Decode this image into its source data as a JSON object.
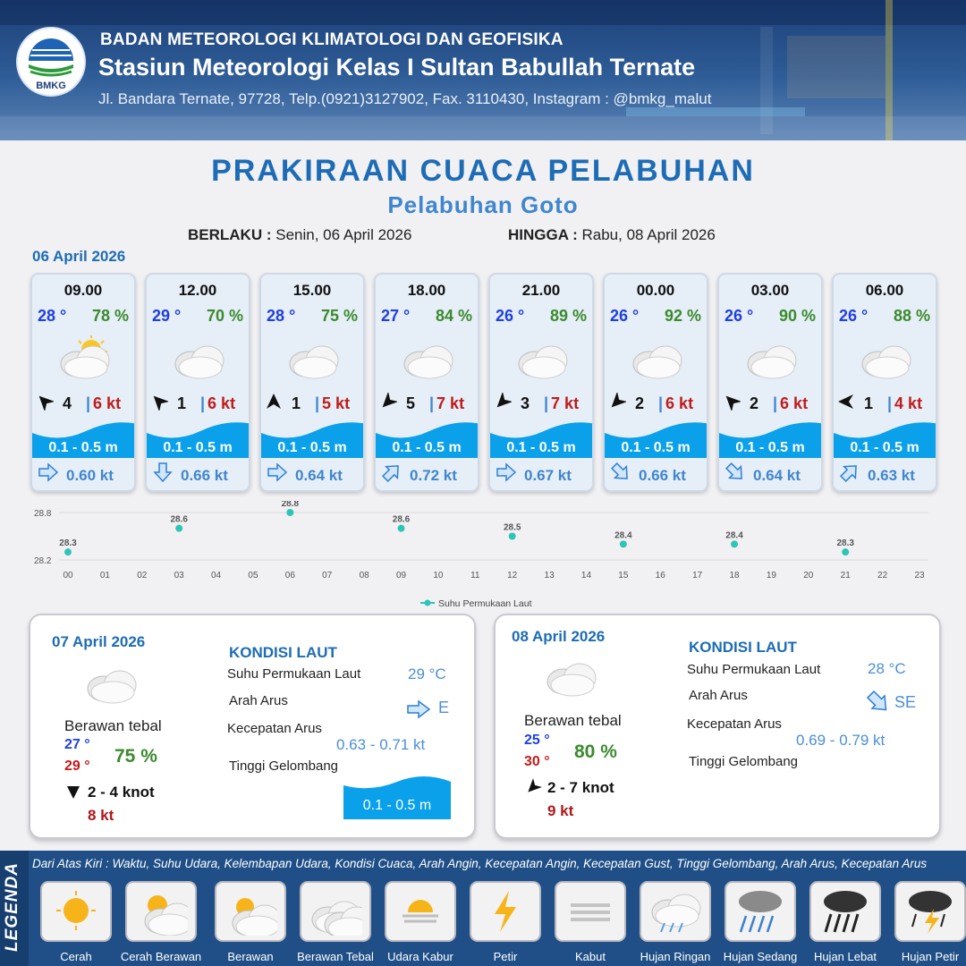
{
  "header": {
    "logo_text": "BMKG",
    "agency": "BADAN METEOROLOGI KLIMATOLOGI DAN GEOFISIKA",
    "station": "Stasiun Meteorologi Kelas I Sultan Babullah Ternate",
    "address": "Jl. Bandara Ternate, 97728, Telp.(0921)3127902, Fax. 3110430, Instagram : @bmkg_malut"
  },
  "title": "PRAKIRAAN CUACA PELABUHAN",
  "subtitle": "Pelabuhan Goto",
  "validity": {
    "from_label": "BERLAKU :",
    "from_value": "Senin, 06 April 2026",
    "to_label": "HINGGA :",
    "to_value": "Rabu, 08 April 2026"
  },
  "day1": {
    "date": "06 April 2026",
    "cards": [
      {
        "time": "09.00",
        "temp": "28 °",
        "hum": "78 %",
        "icon": "sun-cloud-icon",
        "wind": "4",
        "gust": "6 kt",
        "wave": "0.1 - 0.5 m",
        "current": "0.60 kt",
        "wdir": 315,
        "cdir": 90
      },
      {
        "time": "12.00",
        "temp": "29 °",
        "hum": "70 %",
        "icon": "cloud-icon",
        "wind": "1",
        "gust": "6 kt",
        "wave": "0.1 - 0.5 m",
        "current": "0.66 kt",
        "wdir": 315,
        "cdir": 180
      },
      {
        "time": "15.00",
        "temp": "28 °",
        "hum": "75 %",
        "icon": "cloud-icon",
        "wind": "1",
        "gust": "5 kt",
        "wave": "0.1 - 0.5 m",
        "current": "0.64 kt",
        "wdir": 0,
        "cdir": 90
      },
      {
        "time": "18.00",
        "temp": "27 °",
        "hum": "84 %",
        "icon": "cloud-icon",
        "wind": "5",
        "gust": "7 kt",
        "wave": "0.1 - 0.5 m",
        "current": "0.72 kt",
        "wdir": 225,
        "cdir": 45
      },
      {
        "time": "21.00",
        "temp": "26 °",
        "hum": "89 %",
        "icon": "cloud-icon",
        "wind": "3",
        "gust": "7 kt",
        "wave": "0.1 - 0.5 m",
        "current": "0.67 kt",
        "wdir": 225,
        "cdir": 90
      },
      {
        "time": "00.00",
        "temp": "26 °",
        "hum": "92 %",
        "icon": "cloud-icon",
        "wind": "2",
        "gust": "6 kt",
        "wave": "0.1 - 0.5 m",
        "current": "0.66 kt",
        "wdir": 225,
        "cdir": 135
      },
      {
        "time": "03.00",
        "temp": "26 °",
        "hum": "90 %",
        "icon": "cloud-icon",
        "wind": "2",
        "gust": "6 kt",
        "wave": "0.1 - 0.5 m",
        "current": "0.64 kt",
        "wdir": 315,
        "cdir": 135
      },
      {
        "time": "06.00",
        "temp": "26 °",
        "hum": "88 %",
        "icon": "cloud-icon",
        "wind": "1",
        "gust": "4 kt",
        "wave": "0.1 - 0.5 m",
        "current": "0.63 kt",
        "wdir": 270,
        "cdir": 45
      }
    ]
  },
  "chart_data": {
    "type": "scatter",
    "x": [
      "00",
      "03",
      "06",
      "09",
      "12",
      "15",
      "18",
      "21"
    ],
    "series": [
      {
        "name": "Suhu Permukaan Laut",
        "values": [
          28.3,
          28.6,
          28.8,
          28.6,
          28.5,
          28.4,
          28.4,
          28.3
        ]
      }
    ],
    "x_ticks": [
      "00",
      "01",
      "02",
      "03",
      "04",
      "05",
      "06",
      "07",
      "08",
      "09",
      "10",
      "11",
      "12",
      "13",
      "14",
      "15",
      "16",
      "17",
      "18",
      "19",
      "20",
      "21",
      "22",
      "23"
    ],
    "y_ticks": [
      "28.8",
      "28.2"
    ],
    "ylim": [
      28.2,
      28.8
    ],
    "grid": true,
    "legend": "bottom",
    "color": "#2ec4b6"
  },
  "day2": {
    "date": "07 April 2026",
    "condition": "Berawan tebal",
    "temp_min": "27 °",
    "temp_max": "29 °",
    "humidity": "75 %",
    "wind": "2  - 4 knot",
    "gust": "8 kt",
    "sea_title": "KONDISI LAUT",
    "sst_label": "Suhu Permukaan Laut",
    "sst_value": "29 °C",
    "cur_dir_label": "Arah Arus",
    "cur_dir_value": "E",
    "cur_spd_label": "Kecepatan Arus",
    "cur_spd_value": "0.63  - 0.71 kt",
    "wave_label": "Tinggi Gelombang",
    "wave_value": "0.1 - 0.5 m"
  },
  "day3": {
    "date": "08 April 2026",
    "condition": "Berawan tebal",
    "temp_min": "25 °",
    "temp_max": "30 °",
    "humidity": "80 %",
    "wind": "2  - 7 knot",
    "gust": "9 kt",
    "sea_title": "KONDISI LAUT",
    "sst_label": "Suhu Permukaan Laut",
    "sst_value": "28 °C",
    "cur_dir_label": "Arah Arus",
    "cur_dir_value": "SE",
    "cur_spd_label": "Kecepatan Arus",
    "cur_spd_value": "0.69  - 0.79 kt",
    "wave_label": "Tinggi Gelombang"
  },
  "legend": {
    "side_label": "LEGENDA",
    "description": "Dari Atas Kiri : Waktu, Suhu Udara, Kelembapan Udara, Kondisi Cuaca, Arah Angin, Kecepatan Angin, Kecepatan Gust, Tinggi Gelombang, Arah Arus, Kecepatan Arus",
    "items": [
      {
        "label": "Cerah",
        "icon": "sun-icon"
      },
      {
        "label": "Cerah Berawan",
        "icon": "sun-cloud-icon"
      },
      {
        "label": "Berawan",
        "icon": "cloudy-icon"
      },
      {
        "label": "Berawan Tebal",
        "icon": "overcast-icon"
      },
      {
        "label": "Udara Kabur",
        "icon": "haze-icon"
      },
      {
        "label": "Petir",
        "icon": "lightning-icon"
      },
      {
        "label": "Kabut",
        "icon": "fog-icon"
      },
      {
        "label": "Hujan Ringan",
        "icon": "light-rain-icon"
      },
      {
        "label": "Hujan Sedang",
        "icon": "moderate-rain-icon"
      },
      {
        "label": "Hujan Lebat",
        "icon": "heavy-rain-icon"
      },
      {
        "label": "Hujan Petir",
        "icon": "thunderstorm-icon"
      }
    ]
  }
}
